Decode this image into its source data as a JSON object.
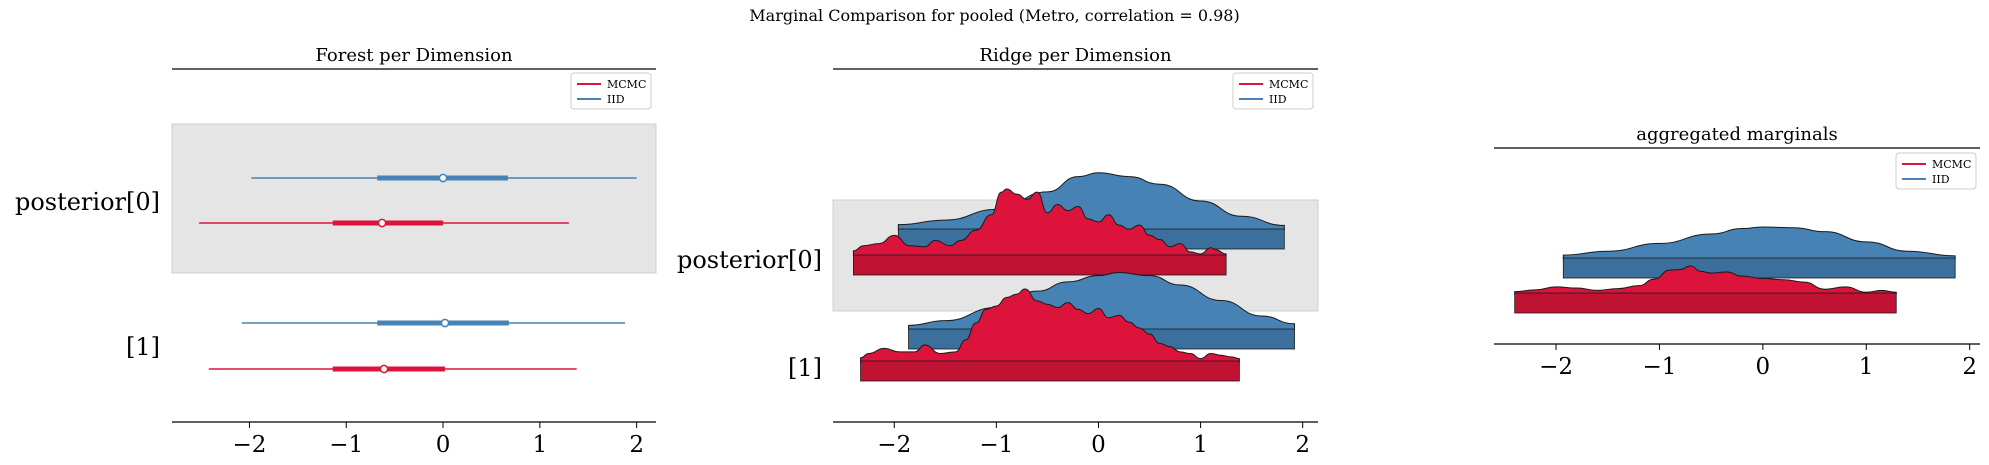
{
  "suptitle": "Marginal Comparison for pooled (Metro, correlation = 0.98)",
  "colors": {
    "mcmc": "#DC143C",
    "iid": "#4682B4",
    "band": "#e5e5e5"
  },
  "chart_data": [
    {
      "type": "forest",
      "title": "Forest per Dimension",
      "xlim": [
        -2.8,
        2.2
      ],
      "xticks": [
        -2,
        -1,
        0,
        1,
        2
      ],
      "xtick_labels": [
        "−2",
        "−1",
        "0",
        "1",
        "2"
      ],
      "ylabels": [
        "posterior[0]",
        "[1]"
      ],
      "legend": {
        "position": "top-right",
        "entries": [
          "MCMC",
          "IID"
        ]
      },
      "series": [
        {
          "name": "IID",
          "dimension": "posterior[0]",
          "median": 0.0,
          "inner": [
            -0.68,
            0.67
          ],
          "outer": [
            -1.98,
            2.0
          ]
        },
        {
          "name": "MCMC",
          "dimension": "posterior[0]",
          "median": -0.63,
          "inner": [
            -1.14,
            0.0
          ],
          "outer": [
            -2.52,
            1.3
          ]
        },
        {
          "name": "IID",
          "dimension": "[1]",
          "median": 0.02,
          "inner": [
            -0.68,
            0.68
          ],
          "outer": [
            -2.08,
            1.88
          ]
        },
        {
          "name": "MCMC",
          "dimension": "[1]",
          "median": -0.61,
          "inner": [
            -1.14,
            0.02
          ],
          "outer": [
            -2.42,
            1.38
          ]
        }
      ]
    },
    {
      "type": "ridge",
      "title": "Ridge per Dimension",
      "xlim": [
        -2.6,
        2.15
      ],
      "xticks": [
        -2,
        -1,
        0,
        1,
        2
      ],
      "xtick_labels": [
        "−2",
        "−1",
        "0",
        "1",
        "2"
      ],
      "ylabels": [
        "posterior[0]",
        "[1]"
      ],
      "legend": {
        "position": "top-right",
        "entries": [
          "MCMC",
          "IID"
        ]
      },
      "series": [
        {
          "name": "IID",
          "dimension": "posterior[0]",
          "range": [
            -1.96,
            1.82
          ],
          "peak": 0.76,
          "x": [
            -1.96,
            -1.5,
            -1,
            -0.5,
            -0.2,
            0,
            0.3,
            0.6,
            1,
            1.4,
            1.82
          ],
          "density": [
            0.07,
            0.13,
            0.27,
            0.5,
            0.7,
            0.75,
            0.7,
            0.6,
            0.38,
            0.18,
            0.06
          ]
        },
        {
          "name": "MCMC",
          "dimension": "posterior[0]",
          "range": [
            -2.4,
            1.25
          ],
          "peak": 0.66,
          "x": [
            -2.4,
            -2.3,
            -2.15,
            -2.0,
            -1.85,
            -1.7,
            -1.6,
            -1.45,
            -1.35,
            -1.2,
            -1.05,
            -0.95,
            -0.9,
            -0.8,
            -0.7,
            -0.6,
            -0.5,
            -0.4,
            -0.3,
            -0.2,
            -0.1,
            0,
            0.1,
            0.2,
            0.3,
            0.4,
            0.5,
            0.6,
            0.7,
            0.8,
            0.9,
            1.0,
            1.1,
            1.15,
            1.25
          ],
          "density": [
            0.05,
            0.1,
            0.12,
            0.2,
            0.1,
            0.09,
            0.15,
            0.1,
            0.15,
            0.25,
            0.4,
            0.62,
            0.65,
            0.6,
            0.55,
            0.62,
            0.42,
            0.5,
            0.44,
            0.48,
            0.36,
            0.33,
            0.4,
            0.3,
            0.26,
            0.3,
            0.2,
            0.16,
            0.09,
            0.12,
            0.04,
            0.02,
            0.08,
            0.06,
            0.02
          ]
        },
        {
          "name": "IID",
          "dimension": "[1]",
          "range": [
            -1.86,
            1.92
          ],
          "peak": 0.76,
          "x": [
            -1.86,
            -1.5,
            -1,
            -0.6,
            -0.3,
            0,
            0.2,
            0.5,
            0.8,
            1.2,
            1.6,
            1.92
          ],
          "density": [
            0.06,
            0.12,
            0.29,
            0.5,
            0.62,
            0.7,
            0.74,
            0.7,
            0.58,
            0.38,
            0.18,
            0.08
          ]
        },
        {
          "name": "MCMC",
          "dimension": "[1]",
          "range": [
            -2.33,
            1.38
          ],
          "peak": 0.86,
          "x": [
            -2.33,
            -2.25,
            -2.1,
            -1.95,
            -1.8,
            -1.7,
            -1.55,
            -1.4,
            -1.3,
            -1.2,
            -1.1,
            -1.0,
            -0.9,
            -0.8,
            -0.72,
            -0.6,
            -0.5,
            -0.4,
            -0.3,
            -0.2,
            -0.1,
            0,
            0.1,
            0.2,
            0.3,
            0.4,
            0.5,
            0.6,
            0.7,
            0.8,
            0.9,
            1.0,
            1.1,
            1.2,
            1.3,
            1.38
          ],
          "density": [
            0.05,
            0.1,
            0.16,
            0.12,
            0.12,
            0.2,
            0.1,
            0.12,
            0.26,
            0.46,
            0.62,
            0.66,
            0.76,
            0.8,
            0.86,
            0.72,
            0.68,
            0.64,
            0.7,
            0.62,
            0.57,
            0.63,
            0.52,
            0.55,
            0.47,
            0.4,
            0.33,
            0.22,
            0.18,
            0.12,
            0.1,
            0.04,
            0.1,
            0.08,
            0.06,
            0.04
          ]
        }
      ]
    },
    {
      "type": "ridge",
      "title": "aggregated marginals",
      "xlim": [
        -2.6,
        2.1
      ],
      "xticks": [
        -2,
        -1,
        0,
        1,
        2
      ],
      "xtick_labels": [
        "−2",
        "−1",
        "0",
        "1",
        "2"
      ],
      "legend": {
        "position": "top-right",
        "entries": [
          "MCMC",
          "IID"
        ]
      },
      "series": [
        {
          "name": "IID",
          "range": [
            -1.93,
            1.86
          ],
          "peak": 0.41,
          "x": [
            -1.93,
            -1.5,
            -1,
            -0.5,
            -0.2,
            0,
            0.3,
            0.6,
            1,
            1.4,
            1.86
          ],
          "density": [
            0.05,
            0.1,
            0.2,
            0.32,
            0.39,
            0.41,
            0.4,
            0.35,
            0.22,
            0.1,
            0.04
          ]
        },
        {
          "name": "MCMC",
          "range": [
            -2.4,
            1.29
          ],
          "peak": 0.47,
          "x": [
            -2.4,
            -2.2,
            -2.0,
            -1.8,
            -1.6,
            -1.4,
            -1.2,
            -1.05,
            -0.9,
            -0.8,
            -0.7,
            -0.6,
            -0.5,
            -0.35,
            -0.2,
            0,
            0.2,
            0.4,
            0.6,
            0.8,
            1.0,
            1.15,
            1.29
          ],
          "density": [
            0.04,
            0.07,
            0.12,
            0.1,
            0.06,
            0.09,
            0.14,
            0.25,
            0.4,
            0.41,
            0.47,
            0.38,
            0.35,
            0.37,
            0.3,
            0.26,
            0.24,
            0.2,
            0.08,
            0.12,
            0.03,
            0.06,
            0.03
          ]
        }
      ]
    }
  ]
}
